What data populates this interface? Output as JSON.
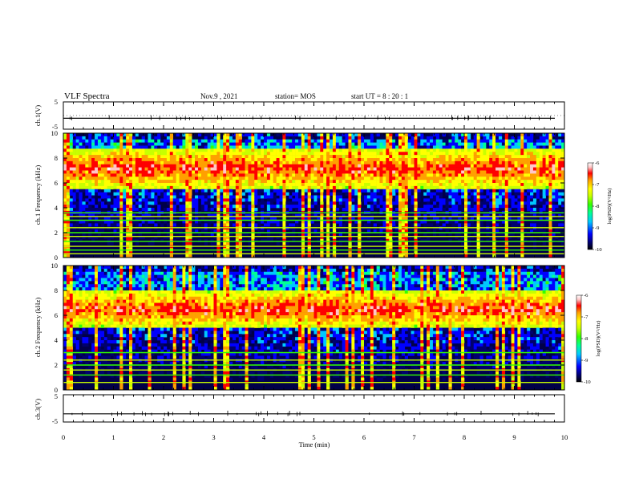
{
  "header": {
    "title": "VLF Spectra",
    "date": "Nov.9 , 2021",
    "station": "station= MOS",
    "start": "start UT = 8 : 20 : 1"
  },
  "colors": {
    "spectrogram_scale": [
      "#000000",
      "#00006e",
      "#0000ff",
      "#00c8ff",
      "#00ff96",
      "#32ff00",
      "#c8ff00",
      "#ffff00",
      "#ffa000",
      "#ff0000",
      "#ffc8c8",
      "#ffffff"
    ],
    "line": "#000000"
  },
  "chart_data": [
    {
      "type": "line",
      "title": "",
      "ylabel": "ch.1(V)",
      "xlim": [
        0,
        10
      ],
      "ylim": [
        -5,
        5
      ],
      "yticks": [
        "5",
        "-5"
      ],
      "series": [
        {
          "values": [
            -1,
            -1,
            -1,
            -1,
            -1,
            -1,
            -1,
            -1,
            -1,
            -1,
            -1
          ]
        }
      ]
    },
    {
      "type": "heatmap",
      "ylabel": "ch.1 Frequency (kHz)",
      "xlim": [
        0,
        10
      ],
      "ylim": [
        0,
        10
      ],
      "yticks": [
        "0",
        "2",
        "4",
        "6",
        "8",
        "10"
      ],
      "band_khz": [
        5.5,
        8.8
      ],
      "horizontal_lines_khz": [
        0.3,
        0.6,
        0.9,
        1.3,
        1.7,
        2.0,
        2.4,
        3.0,
        3.3,
        3.6
      ],
      "colorbar": {
        "label": "log(PSD)(V²/Hz)",
        "range": [
          -10,
          -6
        ],
        "ticks": [
          "-6",
          "-7",
          "-8",
          "-9",
          "-10"
        ]
      }
    },
    {
      "type": "heatmap",
      "ylabel": "ch.2 Frequency (kHz)",
      "xlim": [
        0,
        10
      ],
      "ylim": [
        0,
        10
      ],
      "yticks": [
        "0",
        "2",
        "4",
        "6",
        "8",
        "10"
      ],
      "band_khz": [
        5.0,
        8.0
      ],
      "horizontal_lines_khz": [
        0.6,
        1.2,
        1.6,
        2.0,
        2.4,
        3.0
      ],
      "colorbar": {
        "label": "log(PSD)(V²/Hz)",
        "range": [
          -10,
          -6
        ],
        "ticks": [
          "-6",
          "-7",
          "-8",
          "-9",
          "-10"
        ]
      }
    },
    {
      "type": "line",
      "ylabel": "ch.3(V)",
      "xlabel": "Time (min)",
      "xlim": [
        0,
        10
      ],
      "ylim": [
        -5,
        5
      ],
      "yticks": [
        "5",
        "-5"
      ],
      "xticks": [
        "0",
        "1",
        "2",
        "3",
        "4",
        "5",
        "6",
        "7",
        "8",
        "9",
        "10"
      ],
      "series": [
        {
          "values": [
            -2,
            -2,
            -2,
            -2,
            -2,
            -2,
            -2,
            -2,
            -2,
            -2,
            -2
          ]
        }
      ]
    }
  ]
}
